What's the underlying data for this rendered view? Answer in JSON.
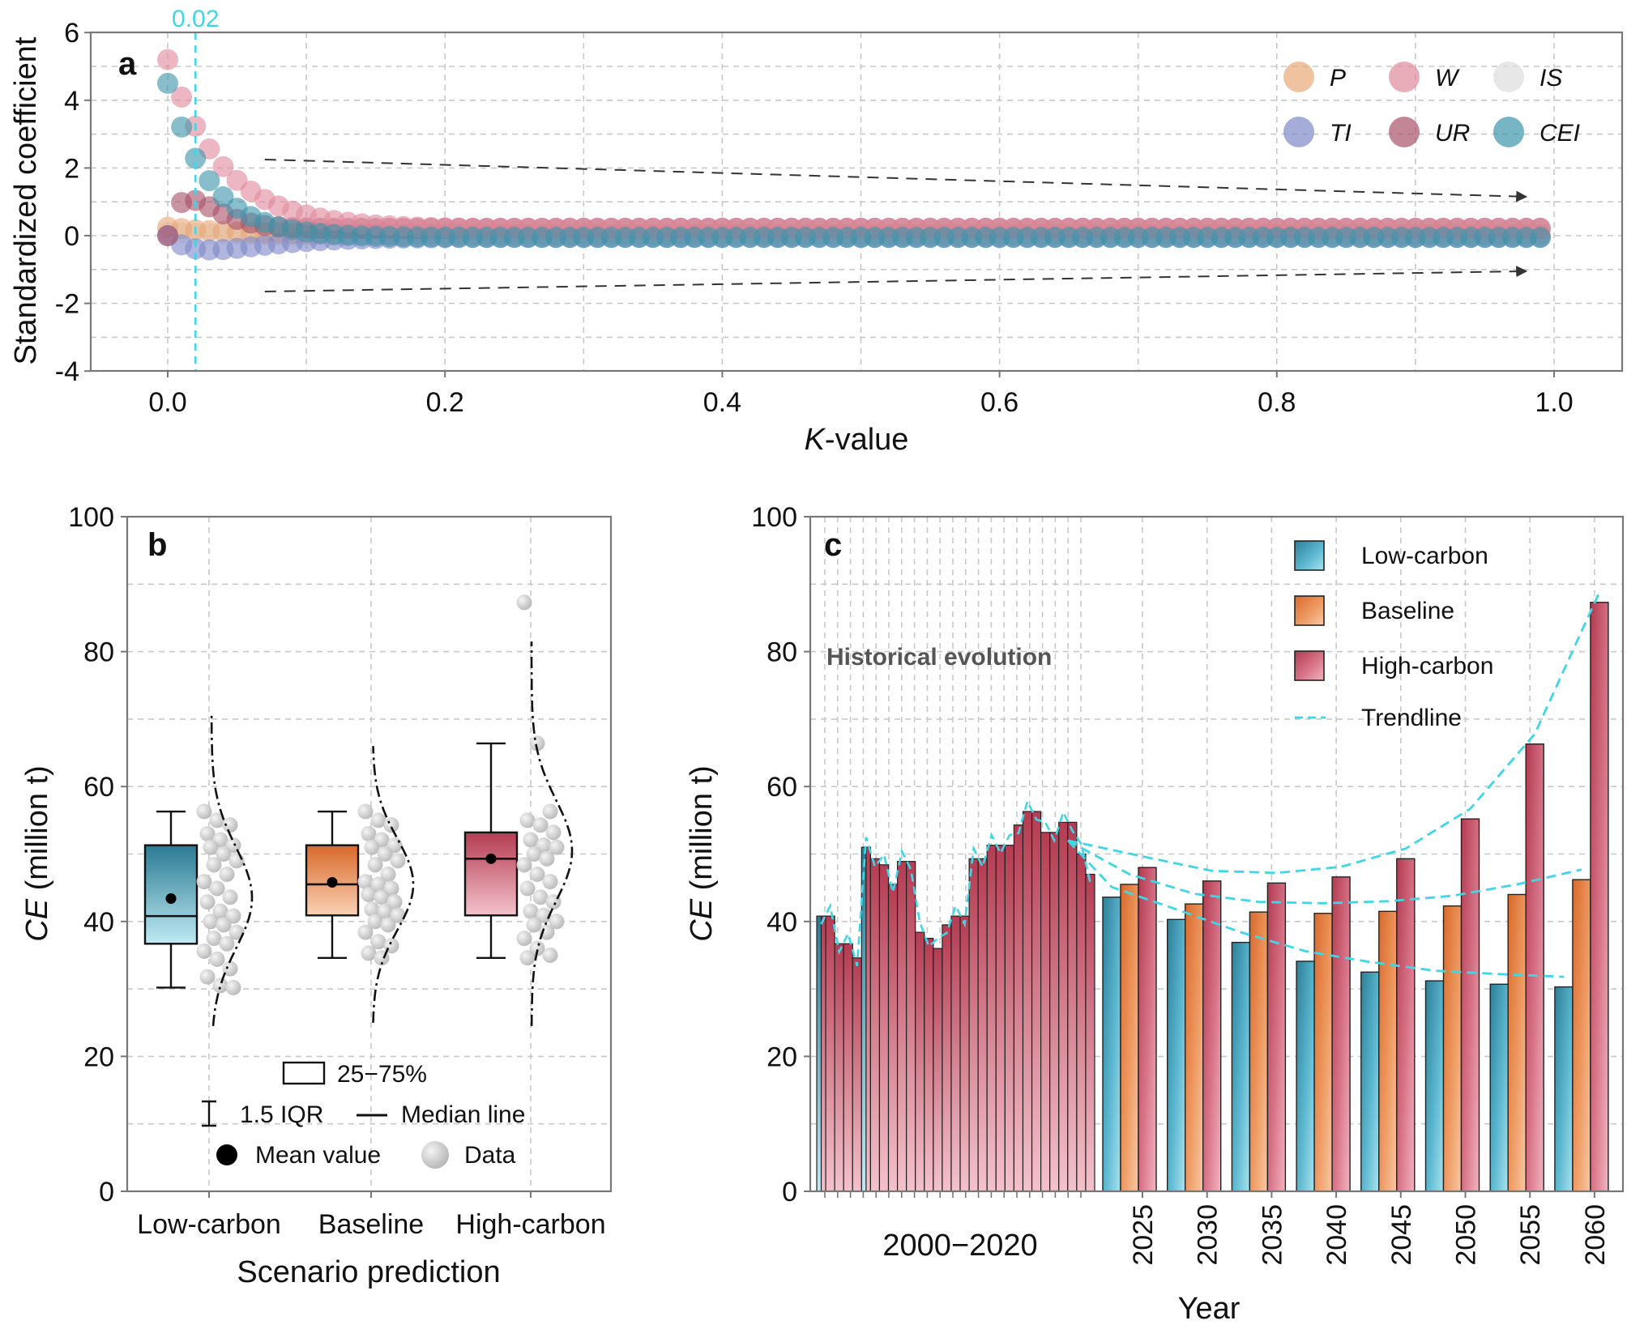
{
  "chart_data": [
    {
      "panel": "a",
      "type": "scatter",
      "xlabel_italic": "K",
      "xlabel_rest": "-value",
      "ylabel": "Standardized coefficient",
      "xlim": [
        -0.05,
        1.05
      ],
      "ylim": [
        -4,
        6
      ],
      "xticks": [
        "0.0",
        "0.2",
        "0.4",
        "0.6",
        "0.8",
        "1.0"
      ],
      "yticks": [
        "-4",
        "-2",
        "0",
        "2",
        "4",
        "6"
      ],
      "k_start": 0.0,
      "k_step": 0.01,
      "k_end": 0.99,
      "selected_k": 0.02,
      "selected_k_label": "0.02",
      "series": [
        {
          "name": "P",
          "color": "#e8a878",
          "y0": 0.25,
          "y_inf": 0.03,
          "decay": 0.05
        },
        {
          "name": "W",
          "color": "#e08a9c",
          "y0": 5.2,
          "y_inf": 0.2,
          "decay": 0.04
        },
        {
          "name": "IS",
          "color": "#dddddd",
          "y0": 0.1,
          "y_inf": 0.0,
          "decay": 0.05
        },
        {
          "name": "TI",
          "color": "#7f89c8",
          "y0": 0.0,
          "y_inf": -0.05,
          "decay": 0.05,
          "dip": -0.4
        },
        {
          "name": "UR",
          "color": "#a9526a",
          "y0": 0.0,
          "y_inf": 0.22,
          "decay": 0.04,
          "peak": 1.0
        },
        {
          "name": "CEI",
          "color": "#3f95ab",
          "y0": 4.5,
          "y_inf": -0.05,
          "decay": 0.03
        }
      ],
      "trend_arrows": [
        "converging to 0 from above",
        "converging to 0 from below"
      ]
    },
    {
      "panel": "b",
      "type": "box",
      "xlabel": "Scenario prediction",
      "ylabel_italic": "CE",
      "ylabel_rest": " (million t)",
      "ylim": [
        0,
        100
      ],
      "yticks": [
        "0",
        "20",
        "40",
        "60",
        "80",
        "100"
      ],
      "categories": [
        "Low-carbon",
        "Baseline",
        "High-carbon"
      ],
      "colors": [
        "#3d9ab2",
        "#e07a3e",
        "#c24a5e"
      ],
      "boxes": [
        {
          "min": 30.2,
          "q1": 36.7,
          "median": 40.8,
          "q3": 51.3,
          "max": 56.3,
          "mean": 43.4
        },
        {
          "min": 34.6,
          "q1": 40.9,
          "median": 45.5,
          "q3": 51.3,
          "max": 56.3,
          "mean": 45.8
        },
        {
          "min": 34.6,
          "q1": 40.9,
          "median": 49.3,
          "q3": 53.2,
          "max": 66.4,
          "mean": 49.3
        }
      ],
      "points": [
        [
          56.3,
          55.0,
          54.3,
          53.0,
          52.1,
          51.3,
          51.0,
          50.0,
          49.0,
          48.4,
          47.0,
          45.9,
          44.9,
          43.6,
          42.9,
          41.5,
          40.8,
          40.0,
          39.5,
          38.4,
          37.5,
          36.7,
          35.6,
          34.4,
          33.0,
          31.8,
          30.5,
          30.2
        ],
        [
          56.3,
          55.0,
          54.3,
          53.0,
          52.1,
          51.3,
          51.0,
          50.0,
          49.0,
          48.4,
          47.0,
          45.9,
          45.5,
          44.9,
          44.0,
          43.6,
          42.9,
          41.8,
          41.5,
          40.9,
          40.0,
          39.5,
          38.4,
          37.0,
          36.4,
          35.3,
          34.6
        ],
        [
          87.3,
          66.4,
          56.3,
          55.0,
          54.3,
          53.2,
          52.1,
          51.3,
          51.0,
          50.0,
          49.3,
          48.4,
          47.0,
          45.9,
          44.9,
          43.6,
          42.9,
          41.5,
          40.9,
          40.0,
          39.5,
          38.4,
          37.5,
          36.0,
          35.0,
          34.6
        ]
      ],
      "density": [
        {
          "mean": 43.5,
          "sd": 7.5,
          "lo": 24.5,
          "hi": 71.0
        },
        {
          "mean": 45.5,
          "sd": 6.8,
          "lo": 25.0,
          "hi": 66.0
        },
        {
          "mean": 50.5,
          "sd": 7.5,
          "lo": 24.5,
          "hi": 81.5
        }
      ],
      "legend": {
        "box": "25−75%",
        "whisker": "1.5 IQR",
        "median": "Median line",
        "mean": "Mean value",
        "data": "Data"
      }
    },
    {
      "panel": "c",
      "type": "bar",
      "xlabel": "Year",
      "ylabel_italic": "CE",
      "ylabel_rest": " (million t)",
      "ylim": [
        0,
        100
      ],
      "yticks": [
        "0",
        "20",
        "40",
        "60",
        "80",
        "100"
      ],
      "historical_label": "2000−2020",
      "historical_annotation": "Historical evolution",
      "historical_values": [
        40.8,
        40.8,
        36.7,
        36.7,
        34.6,
        51.0,
        49.3,
        48.4,
        45.5,
        48.9,
        48.9,
        38.4,
        37.5,
        36.0,
        39.5,
        40.8,
        40.8,
        49.3,
        49.3,
        51.3,
        51.3,
        51.3,
        54.3,
        56.3,
        56.3,
        53.2,
        53.2,
        54.7,
        54.7,
        50.0,
        47.0
      ],
      "historical_color": "#c24a5e",
      "future_years": [
        "2025",
        "2030",
        "2035",
        "2040",
        "2045",
        "2050",
        "2055",
        "2060"
      ],
      "series": [
        {
          "name": "Low-carbon",
          "color": "#3d9ab2",
          "values": [
            43.6,
            40.3,
            36.9,
            34.1,
            32.5,
            31.2,
            30.7,
            30.3
          ]
        },
        {
          "name": "Baseline",
          "color": "#e07a3e",
          "values": [
            45.5,
            42.6,
            41.4,
            41.2,
            41.5,
            42.3,
            44.0,
            46.2
          ]
        },
        {
          "name": "High-carbon",
          "color": "#c24a5e",
          "values": [
            48.0,
            46.0,
            45.7,
            46.6,
            49.3,
            55.2,
            66.3,
            87.3
          ]
        }
      ],
      "trendline_label": "Trendline",
      "trendline_color": "#3fd6e6"
    }
  ]
}
